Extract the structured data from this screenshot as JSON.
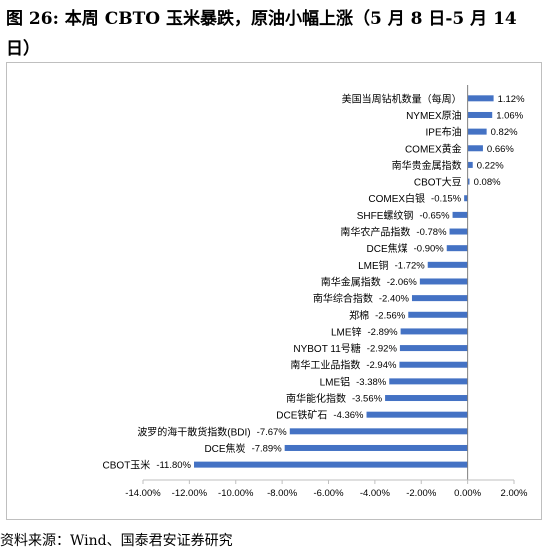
{
  "page": {
    "title": "图 26: 本周 CBTO 玉米暴跌，原油小幅上涨（5 月 8 日-5 月 14 日）",
    "source": "资料来源：Wind、国泰君安证券研究"
  },
  "chart_data": {
    "type": "bar",
    "orientation": "horizontal",
    "title": "",
    "xlabel": "",
    "ylabel": "",
    "xlim": [
      -14,
      2
    ],
    "xticks": [
      "-14.00%",
      "-12.00%",
      "-10.00%",
      "-8.00%",
      "-6.00%",
      "-4.00%",
      "-2.00%",
      "0.00%",
      "2.00%"
    ],
    "grid": false,
    "bar_color": "#4472c4",
    "categories": [
      "美国当周钻机数量（每周）",
      "NYMEX原油",
      "IPE布油",
      "COMEX黄金",
      "南华贵金属指数",
      "CBOT大豆",
      "COMEX白银",
      "SHFE螺纹钢",
      "南华农产品指数",
      "DCE焦煤",
      "LME铜",
      "南华金属指数",
      "南华综合指数",
      "郑棉",
      "LME锌",
      "NYBOT 11号糖",
      "南华工业品指数",
      "LME铝",
      "南华能化指数",
      "DCE铁矿石",
      "波罗的海干散货指数(BDI)",
      "DCE焦炭",
      "CBOT玉米"
    ],
    "values": [
      1.12,
      1.06,
      0.82,
      0.66,
      0.22,
      0.08,
      -0.15,
      -0.65,
      -0.78,
      -0.9,
      -1.72,
      -2.06,
      -2.4,
      -2.56,
      -2.89,
      -2.92,
      -2.94,
      -3.38,
      -3.56,
      -4.36,
      -7.67,
      -7.89,
      -11.8
    ],
    "value_labels": [
      "1.12%",
      "1.06%",
      "0.82%",
      "0.66%",
      "0.22%",
      "0.08%",
      "-0.15%",
      "-0.65%",
      "-0.78%",
      "-0.90%",
      "-1.72%",
      "-2.06%",
      "-2.40%",
      "-2.56%",
      "-2.89%",
      "-2.92%",
      "-2.94%",
      "-3.38%",
      "-3.56%",
      "-4.36%",
      "-7.67%",
      "-7.89%",
      "-11.80%"
    ]
  }
}
